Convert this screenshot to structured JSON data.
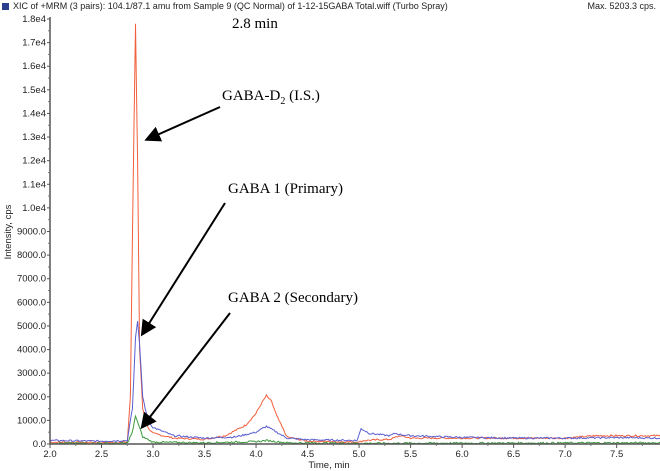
{
  "header": {
    "title": "XIC of +MRM (3 pairs): 104.1/87.1 amu from Sample 9 (QC Normal) of 1-12-15GABA Total.wiff (Turbo Spray)",
    "max_label": "Max. 5203.3 cps."
  },
  "chart_data": {
    "type": "line",
    "title": "XIC of +MRM (3 pairs): 104.1/87.1 amu from Sample 9 (QC Normal) of 1-12-15GABA Total.wiff (Turbo Spray)",
    "xlabel": "Time, min",
    "ylabel": "Intensity, cps",
    "xlim": [
      2.0,
      7.95
    ],
    "ylim": [
      0,
      18000
    ],
    "xticks": [
      2.0,
      2.5,
      3.0,
      3.5,
      4.0,
      4.5,
      5.0,
      5.5,
      6.0,
      6.5,
      7.0,
      7.5
    ],
    "xtick_labels": [
      "2.0",
      "2.5",
      "3.0",
      "3.5",
      "4.0",
      "4.5",
      "5.0",
      "5.5",
      "6.0",
      "6.5",
      "7.0",
      "7.5"
    ],
    "yticks": [
      0,
      1000,
      2000,
      3000,
      4000,
      5000,
      6000,
      7000,
      8000,
      9000,
      10000,
      11000,
      12000,
      13000,
      14000,
      15000,
      16000,
      17000,
      18000
    ],
    "ytick_labels": [
      "0.0",
      "1000.0",
      "2000.0",
      "3000.0",
      "4000.0",
      "5000.0",
      "6000.0",
      "7000.0",
      "8000.0",
      "9000.0",
      "1.0e4",
      "1.1e4",
      "1.2e4",
      "1.3e4",
      "1.4e4",
      "1.5e4",
      "1.6e4",
      "1.7e4",
      "1.8e4"
    ],
    "grid": false,
    "series": [
      {
        "name": "GABA-D2 (I.S.)",
        "color": "#f0603c",
        "points": [
          [
            2.0,
            80
          ],
          [
            2.5,
            60
          ],
          [
            2.75,
            80
          ],
          [
            2.78,
            2000
          ],
          [
            2.81,
            12000
          ],
          [
            2.83,
            17800
          ],
          [
            2.85,
            12000
          ],
          [
            2.87,
            4000
          ],
          [
            2.9,
            1500
          ],
          [
            2.95,
            700
          ],
          [
            3.0,
            450
          ],
          [
            3.2,
            250
          ],
          [
            3.5,
            200
          ],
          [
            3.7,
            350
          ],
          [
            3.9,
            800
          ],
          [
            4.0,
            1300
          ],
          [
            4.05,
            1700
          ],
          [
            4.1,
            2050
          ],
          [
            4.15,
            1800
          ],
          [
            4.2,
            1200
          ],
          [
            4.3,
            300
          ],
          [
            4.5,
            120
          ],
          [
            5.0,
            80
          ],
          [
            5.05,
            150
          ],
          [
            5.3,
            200
          ],
          [
            5.4,
            350
          ],
          [
            5.5,
            250
          ],
          [
            6.0,
            250
          ],
          [
            6.5,
            250
          ],
          [
            7.0,
            250
          ],
          [
            7.3,
            350
          ],
          [
            7.95,
            350
          ]
        ]
      },
      {
        "name": "GABA 1 (Primary)",
        "color": "#5a5fd0",
        "points": [
          [
            2.0,
            150
          ],
          [
            2.5,
            120
          ],
          [
            2.75,
            150
          ],
          [
            2.8,
            1500
          ],
          [
            2.83,
            4500
          ],
          [
            2.85,
            5200
          ],
          [
            2.87,
            4200
          ],
          [
            2.9,
            2000
          ],
          [
            2.95,
            1000
          ],
          [
            3.0,
            700
          ],
          [
            3.2,
            350
          ],
          [
            3.5,
            250
          ],
          [
            3.8,
            300
          ],
          [
            4.0,
            500
          ],
          [
            4.1,
            750
          ],
          [
            4.2,
            500
          ],
          [
            4.3,
            250
          ],
          [
            4.5,
            180
          ],
          [
            4.98,
            150
          ],
          [
            5.02,
            650
          ],
          [
            5.1,
            450
          ],
          [
            5.3,
            350
          ],
          [
            5.35,
            450
          ],
          [
            5.4,
            400
          ],
          [
            5.5,
            350
          ],
          [
            6.0,
            280
          ],
          [
            6.5,
            250
          ],
          [
            7.0,
            250
          ],
          [
            7.5,
            270
          ],
          [
            7.95,
            250
          ]
        ]
      },
      {
        "name": "GABA 2 (Secondary)",
        "color": "#3d9a3d",
        "points": [
          [
            2.0,
            30
          ],
          [
            2.75,
            30
          ],
          [
            2.8,
            500
          ],
          [
            2.83,
            1200
          ],
          [
            2.86,
            800
          ],
          [
            2.9,
            300
          ],
          [
            3.0,
            80
          ],
          [
            3.5,
            50
          ],
          [
            4.0,
            100
          ],
          [
            4.1,
            150
          ],
          [
            4.3,
            50
          ],
          [
            5.0,
            30
          ],
          [
            7.95,
            50
          ]
        ]
      }
    ],
    "annotations": [
      {
        "text": "2.8 min"
      },
      {
        "text": "GABA-D",
        "sub": "2",
        "tail": " (I.S.)"
      },
      {
        "text": "GABA 1 (Primary)"
      },
      {
        "text": "GABA 2 (Secondary)"
      }
    ]
  }
}
